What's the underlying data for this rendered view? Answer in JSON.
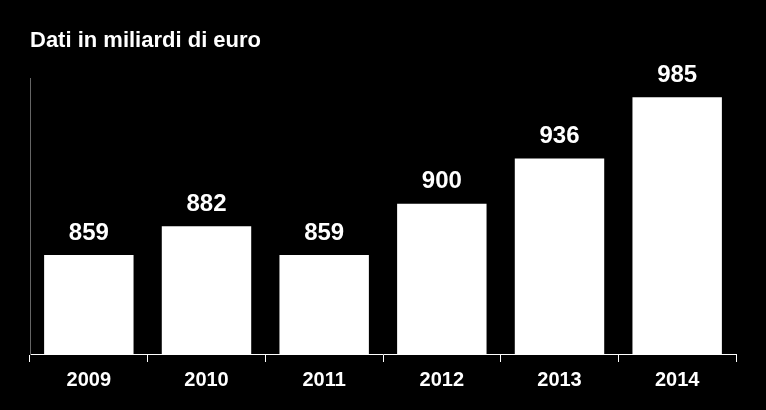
{
  "chart_data": {
    "type": "bar",
    "title": "Dati in miliardi di euro",
    "categories": [
      "2009",
      "2010",
      "2011",
      "2012",
      "2013",
      "2014"
    ],
    "values": [
      859,
      882,
      859,
      900,
      936,
      985
    ],
    "color": "#ffffff",
    "ylim": [
      780,
      1000
    ],
    "grid": false,
    "data_labels": true,
    "tick_labels": "x"
  }
}
